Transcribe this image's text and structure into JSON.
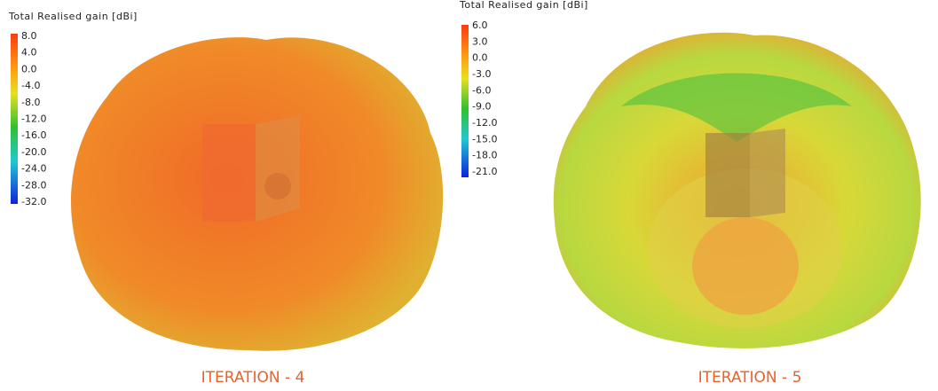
{
  "panels": [
    {
      "legend": {
        "title": "Total Realised gain [dBi]",
        "ticks": [
          "8.0",
          "4.0",
          "0.0",
          "-4.0",
          "-8.0",
          "-12.0",
          "-16.0",
          "-20.0",
          "-24.0",
          "-28.0",
          "-32.0"
        ]
      },
      "caption": "ITERATION - 4"
    },
    {
      "legend": {
        "title": "Total Realised gain [dBi]",
        "ticks": [
          "6.0",
          "3.0",
          "0.0",
          "-3.0",
          "-6.0",
          "-9.0",
          "-12.0",
          "-15.0",
          "-18.0",
          "-21.0"
        ]
      },
      "caption": "ITERATION - 5"
    }
  ]
}
